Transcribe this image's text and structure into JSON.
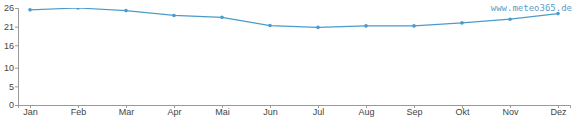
{
  "chart_data": {
    "type": "line",
    "categories": [
      "Jan",
      "Feb",
      "Mar",
      "Apr",
      "Mai",
      "Jun",
      "Jul",
      "Aug",
      "Sep",
      "Okt",
      "Nov",
      "Dez"
    ],
    "values": [
      25.5,
      26,
      25.3,
      24,
      23.5,
      21.3,
      20.8,
      21.2,
      21.2,
      22,
      23,
      24.5
    ],
    "color": "#4a9bcc",
    "marker": "circle",
    "ylim": [
      0,
      26
    ],
    "yticks": [
      0,
      5,
      10,
      16,
      21,
      26
    ],
    "grid": false,
    "annotations": [
      "www.meteo365.de"
    ]
  }
}
